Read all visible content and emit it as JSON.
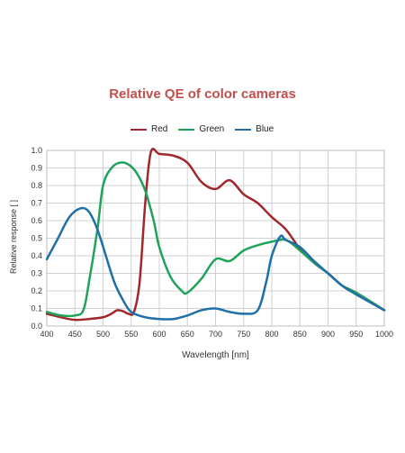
{
  "chart_data": {
    "type": "line",
    "title": "Relative QE of color cameras",
    "xlabel": "Wavelength [nm]",
    "ylabel": "Relative response [ ]",
    "xlim": [
      400,
      1000
    ],
    "ylim": [
      0,
      1.0
    ],
    "grid": true,
    "legend_position": "top",
    "x_ticks": [
      "400",
      "450",
      "500",
      "550",
      "600",
      "650",
      "700",
      "750",
      "800",
      "850",
      "900",
      "950",
      "1000"
    ],
    "y_ticks": [
      "0.0",
      "0.1",
      "0.2",
      "0.3",
      "0.4",
      "0.5",
      "0.6",
      "0.7",
      "0.8",
      "0.9",
      "1.0"
    ],
    "series": [
      {
        "name": "Red",
        "color": "#a0282d",
        "x": [
          400,
          425,
          450,
          475,
          500,
          515,
          525,
          535,
          545,
          555,
          565,
          575,
          585,
          600,
          625,
          650,
          675,
          700,
          725,
          750,
          775,
          800,
          825,
          850,
          875,
          900,
          925,
          950,
          1000
        ],
        "y": [
          0.07,
          0.05,
          0.035,
          0.04,
          0.05,
          0.07,
          0.09,
          0.085,
          0.07,
          0.08,
          0.25,
          0.7,
          0.99,
          0.98,
          0.97,
          0.93,
          0.82,
          0.78,
          0.83,
          0.75,
          0.7,
          0.62,
          0.55,
          0.44,
          0.36,
          0.3,
          0.23,
          0.19,
          0.09
        ]
      },
      {
        "name": "Green",
        "color": "#1fa25a",
        "x": [
          400,
          425,
          450,
          465,
          475,
          490,
          500,
          515,
          530,
          545,
          560,
          575,
          590,
          600,
          620,
          640,
          650,
          675,
          700,
          725,
          750,
          775,
          800,
          825,
          850,
          875,
          900,
          925,
          950,
          1000
        ],
        "y": [
          0.08,
          0.06,
          0.06,
          0.09,
          0.25,
          0.55,
          0.8,
          0.9,
          0.93,
          0.92,
          0.87,
          0.77,
          0.6,
          0.45,
          0.28,
          0.2,
          0.19,
          0.27,
          0.38,
          0.37,
          0.43,
          0.46,
          0.48,
          0.49,
          0.43,
          0.36,
          0.3,
          0.23,
          0.19,
          0.09
        ]
      },
      {
        "name": "Blue",
        "color": "#1f6fa8",
        "x": [
          400,
          420,
          440,
          460,
          475,
          490,
          505,
          520,
          535,
          550,
          575,
          600,
          625,
          650,
          675,
          700,
          725,
          750,
          775,
          790,
          800,
          815,
          825,
          850,
          875,
          900,
          925,
          950,
          1000
        ],
        "y": [
          0.38,
          0.5,
          0.62,
          0.67,
          0.65,
          0.55,
          0.4,
          0.25,
          0.15,
          0.08,
          0.05,
          0.04,
          0.04,
          0.06,
          0.09,
          0.1,
          0.08,
          0.07,
          0.09,
          0.25,
          0.4,
          0.51,
          0.49,
          0.45,
          0.37,
          0.3,
          0.23,
          0.18,
          0.09
        ]
      }
    ]
  }
}
